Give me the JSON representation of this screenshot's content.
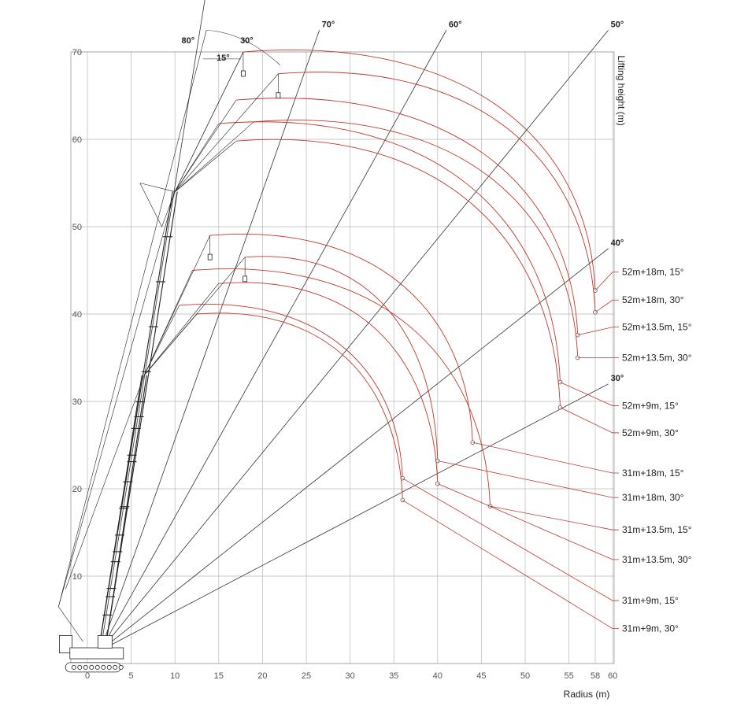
{
  "chart_data": {
    "type": "line",
    "title": "",
    "xlabel": "Radius (m)",
    "ylabel": "Lifting height (m)",
    "xlim": [
      -4,
      60
    ],
    "ylim": [
      -3,
      70
    ],
    "x_ticks": [
      0,
      5,
      10,
      15,
      20,
      25,
      30,
      35,
      40,
      45,
      50,
      55,
      58,
      60
    ],
    "y_ticks": [
      10,
      20,
      30,
      40,
      50,
      60,
      70
    ],
    "grid": true,
    "radial_lines": [
      {
        "label": "80°",
        "x": 13.5,
        "y": 76.5
      },
      {
        "label": "70°",
        "x": 26.5,
        "y": 72.5
      },
      {
        "label": "60°",
        "x": 41.0,
        "y": 72.5
      },
      {
        "label": "50°",
        "x": 59.5,
        "y": 72.5
      },
      {
        "label": "40°",
        "x": 59.5,
        "y": 47.5
      },
      {
        "label": "30°",
        "x": 59.5,
        "y": 32.0
      }
    ],
    "jib_angle_labels": [
      {
        "label": "80°",
        "x": 11.5,
        "y": 71.0
      },
      {
        "label": "15°",
        "x": 15.5,
        "y": 69.0
      },
      {
        "label": "30°",
        "x": 18.2,
        "y": 71.0
      }
    ],
    "booms": [
      {
        "name": "52m main boom",
        "tip": [
          10.0,
          54.0
        ]
      },
      {
        "name": "31m main boom",
        "tip": [
          6.5,
          33.0
        ]
      }
    ],
    "series": [
      {
        "name": "52m+18m, 15°",
        "tip": [
          17.8,
          70.0
        ],
        "end": [
          58.0,
          42.7
        ],
        "label_y": 44.8
      },
      {
        "name": "52m+18m, 30°",
        "tip": [
          21.8,
          67.5
        ],
        "end": [
          58.0,
          40.2
        ],
        "label_y": 41.6
      },
      {
        "name": "52m+13.5m, 15°",
        "tip": [
          17.0,
          64.5
        ],
        "end": [
          56.0,
          37.6
        ],
        "label_y": 38.5
      },
      {
        "name": "52m+13.5m, 30°",
        "tip": [
          19.0,
          62.0
        ],
        "end": [
          56.0,
          35.0
        ],
        "label_y": 35.0
      },
      {
        "name": "52m+9m, 15°",
        "tip": [
          15.0,
          61.8
        ],
        "end": [
          54.0,
          32.2
        ],
        "label_y": 29.5
      },
      {
        "name": "52m+9m, 30°",
        "tip": [
          17.0,
          59.8
        ],
        "end": [
          54.0,
          29.3
        ],
        "label_y": 26.4
      },
      {
        "name": "31m+18m, 15°",
        "tip": [
          14.0,
          49.0
        ],
        "end": [
          44.0,
          25.3
        ],
        "label_y": 21.8
      },
      {
        "name": "31m+18m, 30°",
        "tip": [
          18.0,
          46.5
        ],
        "end": [
          40.0,
          23.2
        ],
        "label_y": 19.0
      },
      {
        "name": "31m+13.5m, 15°",
        "tip": [
          12.0,
          45.0
        ],
        "end": [
          46.0,
          18.0
        ],
        "label_y": 15.3
      },
      {
        "name": "31m+13.5m, 30°",
        "tip": [
          15.0,
          43.5
        ],
        "end": [
          40.0,
          20.6
        ],
        "label_y": 11.9
      },
      {
        "name": "31m+9m, 15°",
        "tip": [
          10.5,
          41.0
        ],
        "end": [
          36.0,
          21.2
        ],
        "label_y": 7.2
      },
      {
        "name": "31m+9m, 30°",
        "tip": [
          12.5,
          40.0
        ],
        "end": [
          36.0,
          18.7
        ],
        "label_y": 4.0
      }
    ]
  }
}
